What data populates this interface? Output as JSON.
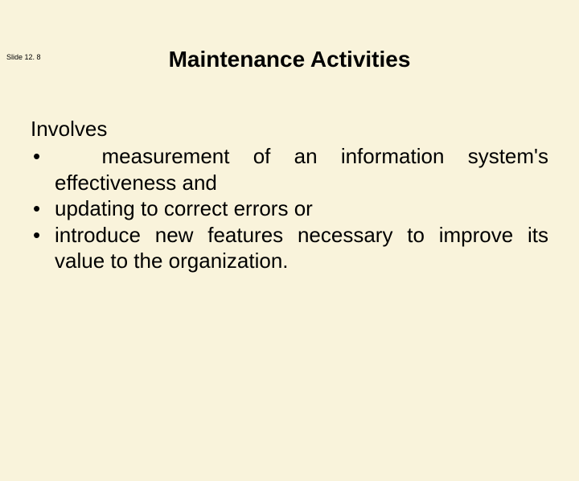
{
  "slide_number": "Slide 12. 8",
  "title": "Maintenance Activities",
  "intro": "Involves",
  "bullets": [
    {
      "line1": "  measurement of an information system's",
      "line2": "effectiveness and"
    },
    {
      "text": "updating to correct errors or"
    },
    {
      "text": "introduce new features necessary to improve its value to the organization."
    }
  ],
  "colors": {
    "background": "#f9f3db",
    "text": "#000000"
  },
  "typography": {
    "title_fontsize": 28,
    "body_fontsize": 26,
    "slide_number_fontsize": 9
  }
}
